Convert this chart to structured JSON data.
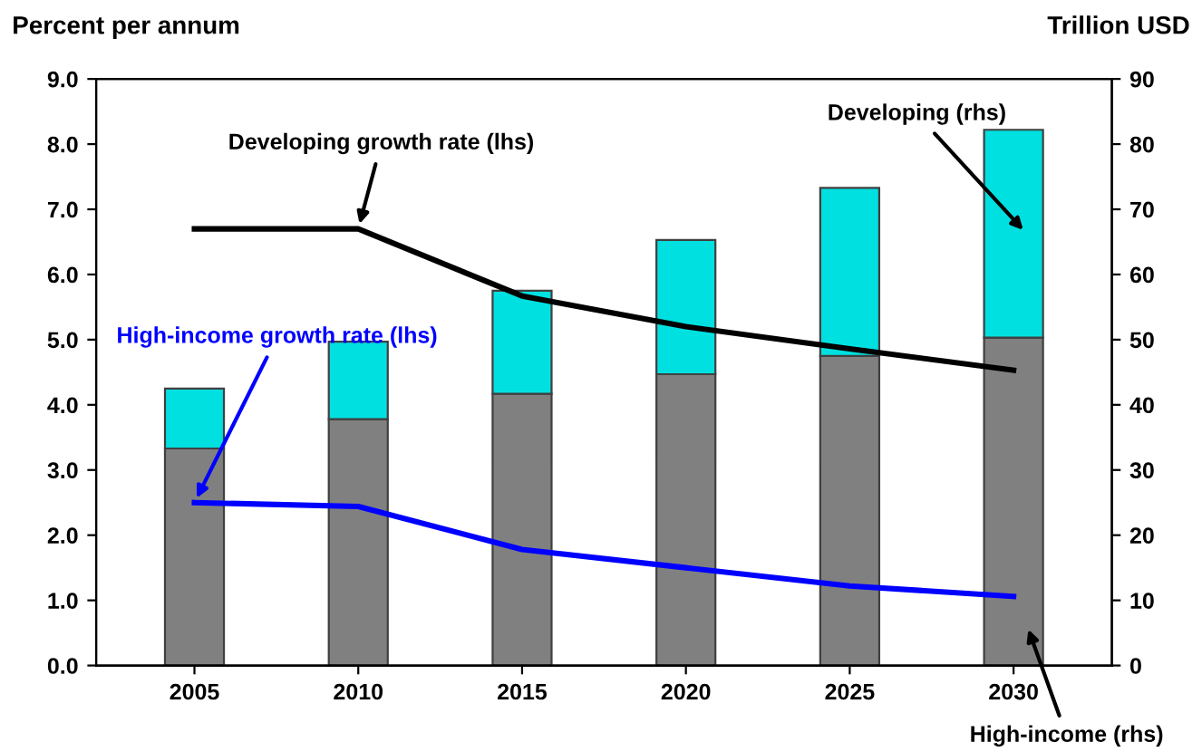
{
  "chart_data": {
    "type": "bar",
    "stacked": true,
    "ylabel": "Percent per annum",
    "y2label": "Trillion USD",
    "categories": [
      "2005",
      "2010",
      "2015",
      "2020",
      "2025",
      "2030"
    ],
    "series": [
      {
        "axis": "y2",
        "color": "#808080",
        "values": [
          33.3,
          37.8,
          41.7,
          44.7,
          47.5,
          50.3
        ]
      },
      {
        "axis": "y2",
        "color": "#00e0e0",
        "values": [
          9.2,
          11.9,
          15.8,
          20.6,
          25.8,
          31.9
        ]
      },
      {
        "type": "line",
        "axis": "y",
        "color": "#0000ff",
        "values": [
          2.5,
          2.44,
          1.78,
          1.5,
          1.22,
          1.06
        ]
      },
      {
        "type": "line",
        "axis": "y",
        "color": "#000000",
        "values": [
          6.7,
          6.7,
          5.67,
          5.2,
          4.86,
          4.53
        ]
      }
    ],
    "annotations": [
      "High-income (rhs)",
      "Developing (rhs)",
      {
        "text": "High-income growth rate (lhs)",
        "x": "2005",
        "y": 2.5
      },
      {
        "text": "Developing growth rate (lhs)",
        "x": "2010",
        "y": 6.7
      }
    ],
    "ylim": [
      0,
      9
    ],
    "yticks": [
      {
        "value": 0,
        "label": "0.0"
      },
      {
        "value": 1,
        "label": "1.0"
      },
      {
        "value": 2,
        "label": "2.0"
      },
      {
        "value": 3,
        "label": "3.0"
      },
      {
        "value": 4,
        "label": "4.0"
      },
      {
        "value": 5,
        "label": "5.0"
      },
      {
        "value": 6,
        "label": "6.0"
      },
      {
        "value": 7,
        "label": "7.0"
      },
      {
        "value": 8,
        "label": "8.0"
      },
      {
        "value": 9,
        "label": "9.0"
      }
    ],
    "y2lim": [
      0,
      90
    ],
    "y2ticks": [
      0,
      10,
      20,
      30,
      40,
      50,
      60,
      70,
      80,
      90
    ],
    "grid": false,
    "legend": false,
    "marker": "none",
    "line_style": "solid"
  }
}
